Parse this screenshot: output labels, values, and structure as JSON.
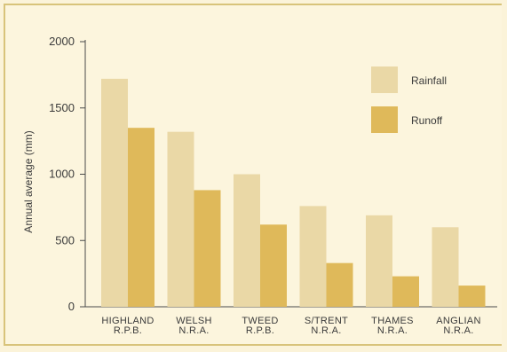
{
  "chart_data": {
    "type": "bar",
    "title": "",
    "xlabel": "",
    "ylabel": "Annual average (mm)",
    "ylim": [
      0,
      2000
    ],
    "yticks": [
      0,
      500,
      1000,
      1500,
      2000
    ],
    "categories": [
      [
        "HIGHLAND",
        "R.P.B."
      ],
      [
        "WELSH",
        "N.R.A."
      ],
      [
        "TWEED",
        "R.P.B."
      ],
      [
        "S/TRENT",
        "N.R.A."
      ],
      [
        "THAMES",
        "N.R.A."
      ],
      [
        "ANGLIAN",
        "N.R.A."
      ]
    ],
    "series": [
      {
        "name": "Rainfall",
        "color": "#ead8a6",
        "values": [
          1720,
          1320,
          1000,
          760,
          690,
          600
        ]
      },
      {
        "name": "Runoff",
        "color": "#dfb95a",
        "values": [
          1350,
          880,
          620,
          330,
          230,
          160
        ]
      }
    ],
    "legend": "top-right",
    "grid": false
  }
}
